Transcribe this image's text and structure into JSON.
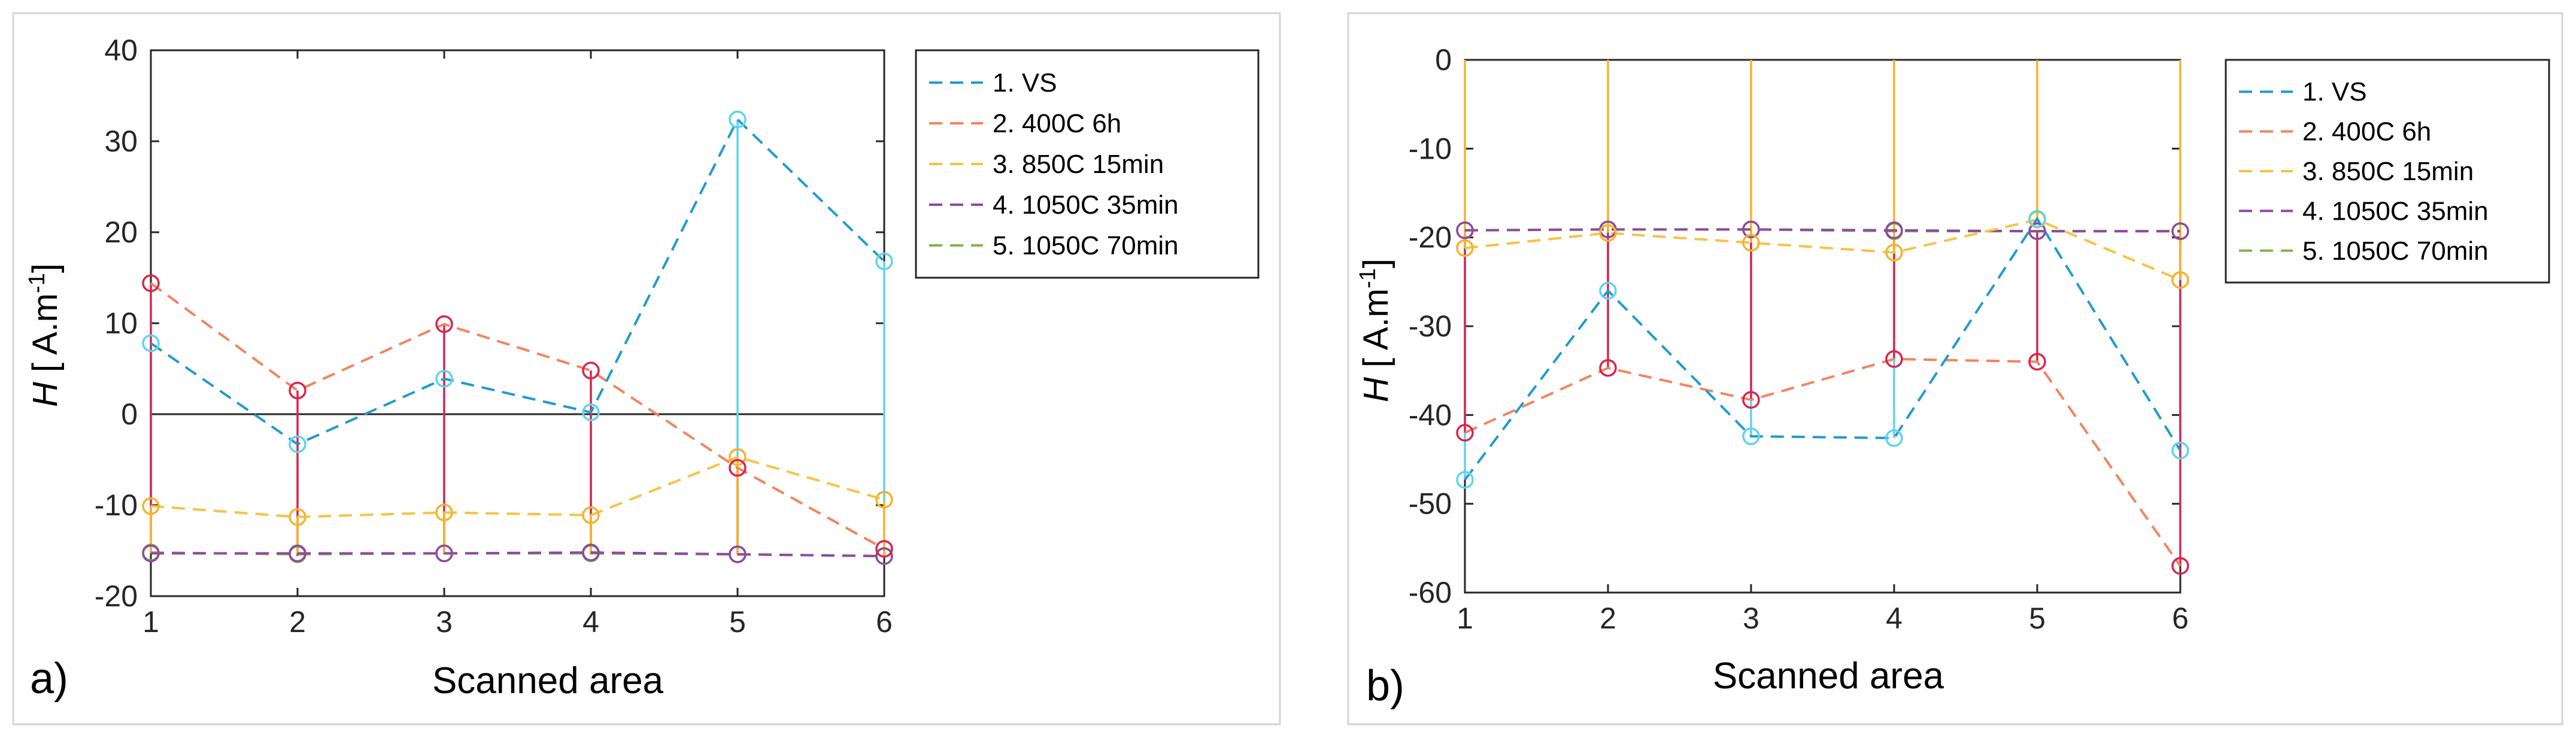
{
  "chart_data": [
    {
      "panel_label": "a)",
      "type": "line",
      "xlabel": "Scanned area",
      "ylabel_main": "H",
      "ylabel_unit_pre": " [ A.m",
      "ylabel_unit_sup": "-1",
      "ylabel_unit_post": "]",
      "xlim": [
        1,
        6
      ],
      "ylim": [
        -20,
        40
      ],
      "xticks": [
        1,
        2,
        3,
        4,
        5,
        6
      ],
      "yticks": [
        -20,
        -10,
        0,
        10,
        20,
        30,
        40
      ],
      "zero_line": true,
      "x": [
        1,
        2,
        3,
        4,
        5,
        6
      ],
      "series": [
        {
          "name": "1. VS",
          "color": "#1f9bd1",
          "stem_color": "#5fd3f0",
          "values": [
            7.8,
            -3.3,
            3.9,
            0.2,
            32.4,
            16.8
          ],
          "lower": [
            -10.1,
            -11.3,
            -10.8,
            -11.1,
            -4.7,
            -9.4
          ]
        },
        {
          "name": "2. 400C 6h",
          "color": "#f4835e",
          "stem_color": "#d7264f",
          "values": [
            14.4,
            2.6,
            9.9,
            4.8,
            -5.9,
            -14.8
          ],
          "lower": [
            -15.3,
            -15.6,
            -15.4,
            -15.4,
            -15.5,
            -15.8
          ]
        },
        {
          "name": "3. 850C 15min",
          "color": "#f6c343",
          "stem_color": "#f6b22a",
          "values": [
            -10.1,
            -11.3,
            -10.8,
            -11.1,
            -4.7,
            -9.4
          ],
          "lower": [
            -15.3,
            -15.3,
            -15.3,
            -15.3,
            -15.5,
            -15.6
          ]
        },
        {
          "name": "4. 1050C 35min",
          "color": "#8e4a9e",
          "stem_color": "#8e4a9e",
          "values": [
            -15.3,
            -15.3,
            -15.3,
            -15.2,
            -15.4,
            -15.6
          ]
        },
        {
          "name": "5. 1050C 70min",
          "color": "#7fb54c",
          "stem_color": "#7fb54c",
          "values": [
            -15.2,
            -15.4,
            -15.3,
            -15.3,
            -15.4,
            -15.6
          ]
        }
      ],
      "legend_position": "outside-right"
    },
    {
      "panel_label": "b)",
      "type": "line",
      "xlabel": "Scanned area",
      "ylabel_main": "H",
      "ylabel_unit_pre": " [ A.m",
      "ylabel_unit_sup": "-1",
      "ylabel_unit_post": "]",
      "xlim": [
        1,
        6
      ],
      "ylim": [
        -60,
        0
      ],
      "xticks": [
        1,
        2,
        3,
        4,
        5,
        6
      ],
      "yticks": [
        -60,
        -50,
        -40,
        -30,
        -20,
        -10,
        0
      ],
      "zero_line": false,
      "x": [
        1,
        2,
        3,
        4,
        5,
        6
      ],
      "series": [
        {
          "name": "1. VS",
          "color": "#1f9bd1",
          "stem_color": "#5fd3f0",
          "values": [
            -47.3,
            -26.0,
            -42.4,
            -42.6,
            -17.9,
            -44.0
          ],
          "upper": [
            -21.2,
            -19.3,
            -20.6,
            -21.7,
            -17.9,
            -24.8
          ]
        },
        {
          "name": "2. 400C 6h",
          "color": "#f4835e",
          "stem_color": "#d7264f",
          "values": [
            -42.0,
            -34.7,
            -38.3,
            -33.7,
            -34.0,
            -57.0
          ],
          "upper": [
            -19.2,
            -19.1,
            -19.1,
            -19.3,
            -19.3,
            -19.3
          ]
        },
        {
          "name": "3. 850C 15min",
          "color": "#f6c343",
          "stem_color": "#f6b22a",
          "values": [
            -21.2,
            -19.5,
            -20.6,
            -21.7,
            -18.0,
            -24.8
          ],
          "upper": [
            0,
            0,
            0,
            0,
            0,
            0
          ]
        },
        {
          "name": "4. 1050C 35min",
          "color": "#8e4a9e",
          "stem_color": "#8e4a9e",
          "values": [
            -19.2,
            -19.1,
            -19.1,
            -19.2,
            -19.3,
            -19.3
          ]
        },
        {
          "name": "5. 1050C 70min",
          "color": "#7fb54c",
          "stem_color": "#7fb54c",
          "values": [
            -19.2,
            -19.1,
            -19.1,
            -19.3,
            -19.3,
            -19.3
          ]
        }
      ],
      "legend_position": "outside-right"
    }
  ]
}
